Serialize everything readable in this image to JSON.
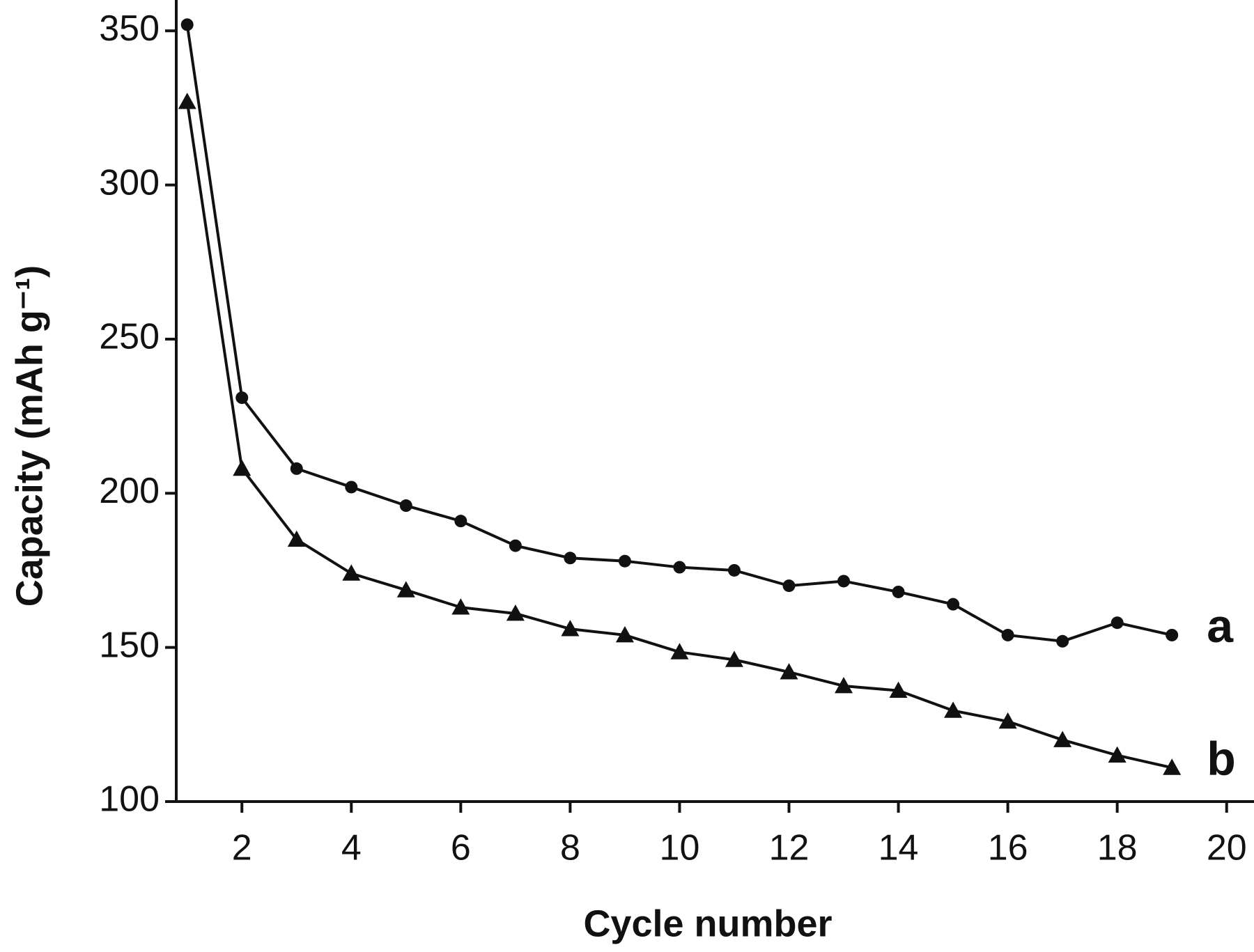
{
  "chart_data": {
    "type": "line",
    "x_label": "Cycle number",
    "y_label": "Capacity (mAh g⁻¹)",
    "x": [
      1,
      2,
      3,
      4,
      5,
      6,
      7,
      8,
      9,
      10,
      11,
      12,
      13,
      14,
      15,
      16,
      17,
      18,
      19
    ],
    "series": [
      {
        "name": "a",
        "color": "#111111",
        "marker": "circle",
        "values": [
          352,
          231,
          208,
          202,
          196,
          191,
          183,
          179,
          178,
          176,
          175,
          170,
          171.5,
          168,
          164,
          154,
          152,
          158,
          154
        ]
      },
      {
        "name": "b",
        "color": "#111111",
        "marker": "triangle",
        "values": [
          327,
          208,
          185,
          174,
          168.6,
          163,
          161,
          156,
          154,
          148.5,
          146,
          142,
          137.5,
          136,
          129.5,
          126,
          120,
          115,
          111
        ]
      }
    ],
    "xlim": [
      0.8,
      20.5
    ],
    "ylim": [
      100,
      360
    ],
    "xticks": [
      2,
      4,
      6,
      8,
      10,
      12,
      14,
      16,
      18,
      20
    ],
    "yticks": [
      100,
      150,
      200,
      250,
      300,
      350
    ],
    "grid": false
  }
}
